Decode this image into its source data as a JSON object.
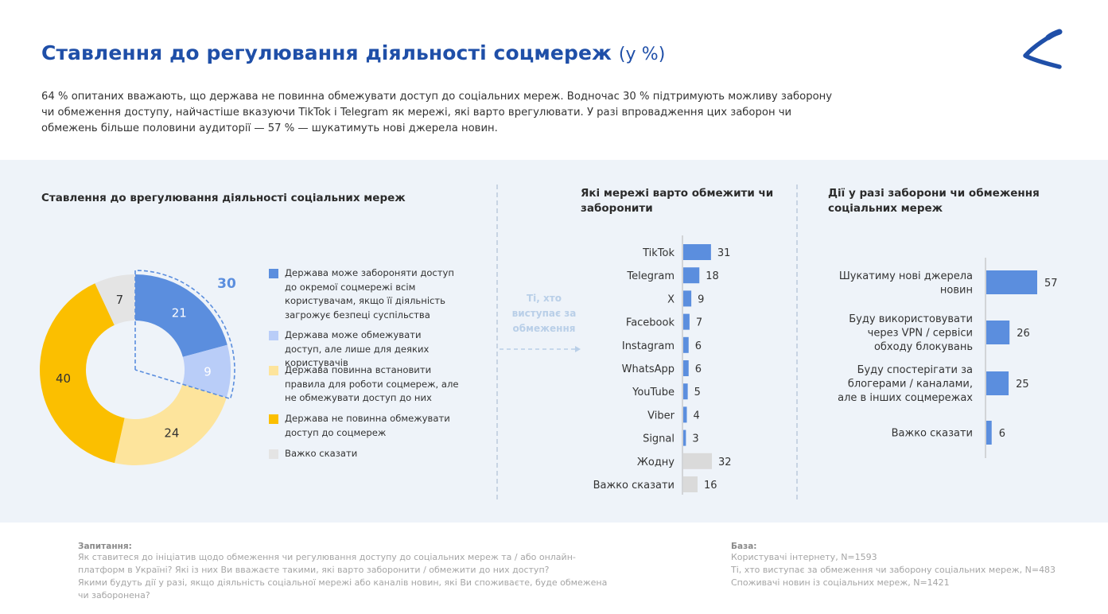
{
  "header": {
    "title": "Ставлення до регулювання діяльності соцмереж",
    "title_unit": "(у %)",
    "intro": "64 % опитаних вважають, що держава не повинна обмежувати доступ до соціальних мереж. Водночас 30 % підтримують можливу заборону чи обмеження доступу, найчастіше вказуючи TikTok і Telegram як мережі, які варто врегулювати. У разі впровадження цих заборон чи обмежень більше половини аудиторії — 57 % — шукатимуть нові джерела новин."
  },
  "logo": {
    "icon": "chevron-swoosh-logo",
    "color": "#1f4fa8"
  },
  "side_note": {
    "text": "Ті, хто виступає за обмеження"
  },
  "colors": {
    "blue_dark": "#5b8ede",
    "blue_light": "#b9cdf8",
    "yellow_light": "#fde49c",
    "yellow": "#fbbf00",
    "grey": "#e4e4e4",
    "title_blue": "#1f4fa8",
    "bar_blue": "#5b8ede",
    "bar_grey": "#dadada"
  },
  "chart_data": [
    {
      "type": "pie",
      "title": "Ставлення до врегулювання діяльності соціальних мереж",
      "categories": [
        "Держава може забороняти доступ до окремої соцмережі всім користувачам, якщо її діяльність загрожує безпеці суспільства",
        "Держава може обмежувати доступ, але лише для деяких користувачів",
        "Держава повинна встановити правила для роботи соцмереж, але не обмежувати доступ до них",
        "Держава не повинна  обмежувати доступ до соцмереж",
        "Важко сказати"
      ],
      "values": [
        21,
        9,
        24,
        40,
        7
      ],
      "value_labels": [
        "21",
        "9",
        "24",
        "40",
        "7"
      ],
      "colors": [
        "#5b8ede",
        "#b9cdf8",
        "#fde49c",
        "#fbbf00",
        "#e4e4e4"
      ],
      "annotation": "30",
      "legend": "right"
    },
    {
      "type": "bar",
      "orientation": "horizontal",
      "title": "Які мережі варто обмежити чи заборонити",
      "categories": [
        "TikTok",
        "Telegram",
        "X",
        "Facebook",
        "Instagram",
        "WhatsApp",
        "YouTube",
        "Viber",
        "Signal",
        "Жодну",
        "Важко сказати"
      ],
      "values": [
        31,
        18,
        9,
        7,
        6,
        6,
        5,
        4,
        3,
        32,
        16
      ],
      "value_labels": [
        "31",
        "18",
        "9",
        "7",
        "6",
        "6",
        "5",
        "4",
        "3",
        "32",
        "16"
      ],
      "colors": [
        "#5b8ede",
        "#5b8ede",
        "#5b8ede",
        "#5b8ede",
        "#5b8ede",
        "#5b8ede",
        "#5b8ede",
        "#5b8ede",
        "#5b8ede",
        "#dadada",
        "#dadada"
      ],
      "xlim": [
        0,
        35
      ]
    },
    {
      "type": "bar",
      "orientation": "horizontal",
      "title": "Дії у разі заборони чи обмеження соціальних мереж",
      "categories": [
        [
          "Шукатиму нові джерела",
          "новин"
        ],
        [
          "Буду використовувати",
          "через VPN / сервіси",
          "обходу блокувань"
        ],
        [
          "Буду спостерігати за",
          "блогерами / каналами,",
          "але в інших соцмережах"
        ],
        [
          "Важко сказати"
        ]
      ],
      "values": [
        57,
        26,
        25,
        6
      ],
      "value_labels": [
        "57",
        "26",
        "25",
        "6"
      ],
      "colors": [
        "#5b8ede",
        "#5b8ede",
        "#5b8ede",
        "#5b8ede"
      ],
      "xlim": [
        0,
        60
      ]
    }
  ],
  "footer": {
    "question_title": "Запитання:",
    "question_lines": [
      "Як ставитеся до ініціатив щодо обмеження чи регулювання доступу до соціальних мереж та / або онлайн-",
      "платформ в Україні? Які із них Ви вважаєте такими, які варто заборонити / обмежити до них доступ?",
      "Якими будуть дії у разі, якщо діяльність соціальної мережі або каналів новин, які Ви споживаєте, буде обмежена",
      "чи заборонена?"
    ],
    "base_title": "База:",
    "base_lines": [
      "Користувачі інтернету, N=1593",
      "Ті, хто виступає за обмеження чи заборону соціальних мереж, N=483",
      "Споживачі новин із соціальних мереж, N=1421"
    ]
  }
}
